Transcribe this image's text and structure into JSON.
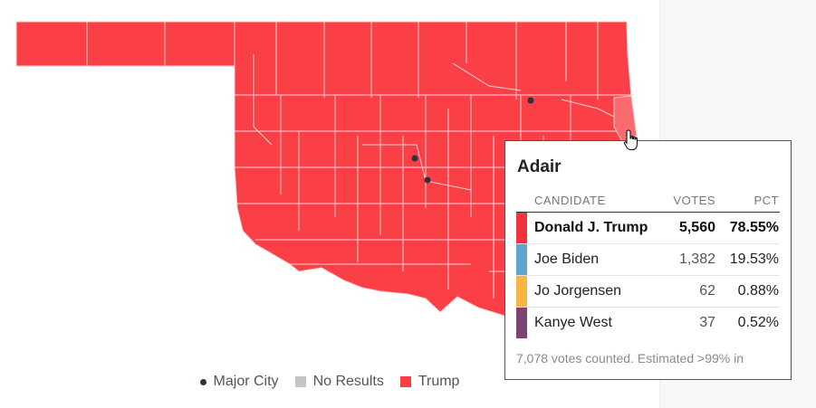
{
  "map": {
    "state": "Oklahoma",
    "colors": {
      "trump": "#fa3f47",
      "hovered_county": "#fb6a6f",
      "county_border": "#f7d3d3",
      "city": "#2b3340"
    },
    "hovered_county": "Adair"
  },
  "legend": {
    "items": [
      {
        "label": "Major City",
        "symbol": "dot",
        "color": "#2b3340"
      },
      {
        "label": "No Results",
        "symbol": "square",
        "color": "#c4c4c4"
      },
      {
        "label": "Trump",
        "symbol": "square",
        "color": "#fa3f47"
      }
    ]
  },
  "tooltip": {
    "county": "Adair",
    "headers": {
      "candidate": "CANDIDATE",
      "votes": "VOTES",
      "pct": "PCT"
    },
    "rows": [
      {
        "candidate": "Donald J. Trump",
        "votes": "5,560",
        "pct": "78.55%",
        "color": "#f0353f",
        "winner": true
      },
      {
        "candidate": "Joe Biden",
        "votes": "1,382",
        "pct": "19.53%",
        "color": "#5ea6cf",
        "winner": false
      },
      {
        "candidate": "Jo Jorgensen",
        "votes": "62",
        "pct": "0.88%",
        "color": "#f7b743",
        "winner": false
      },
      {
        "candidate": "Kanye West",
        "votes": "37",
        "pct": "0.52%",
        "color": "#7a4474",
        "winner": false
      }
    ],
    "footer": "7,078 votes counted. Estimated >99% in"
  }
}
